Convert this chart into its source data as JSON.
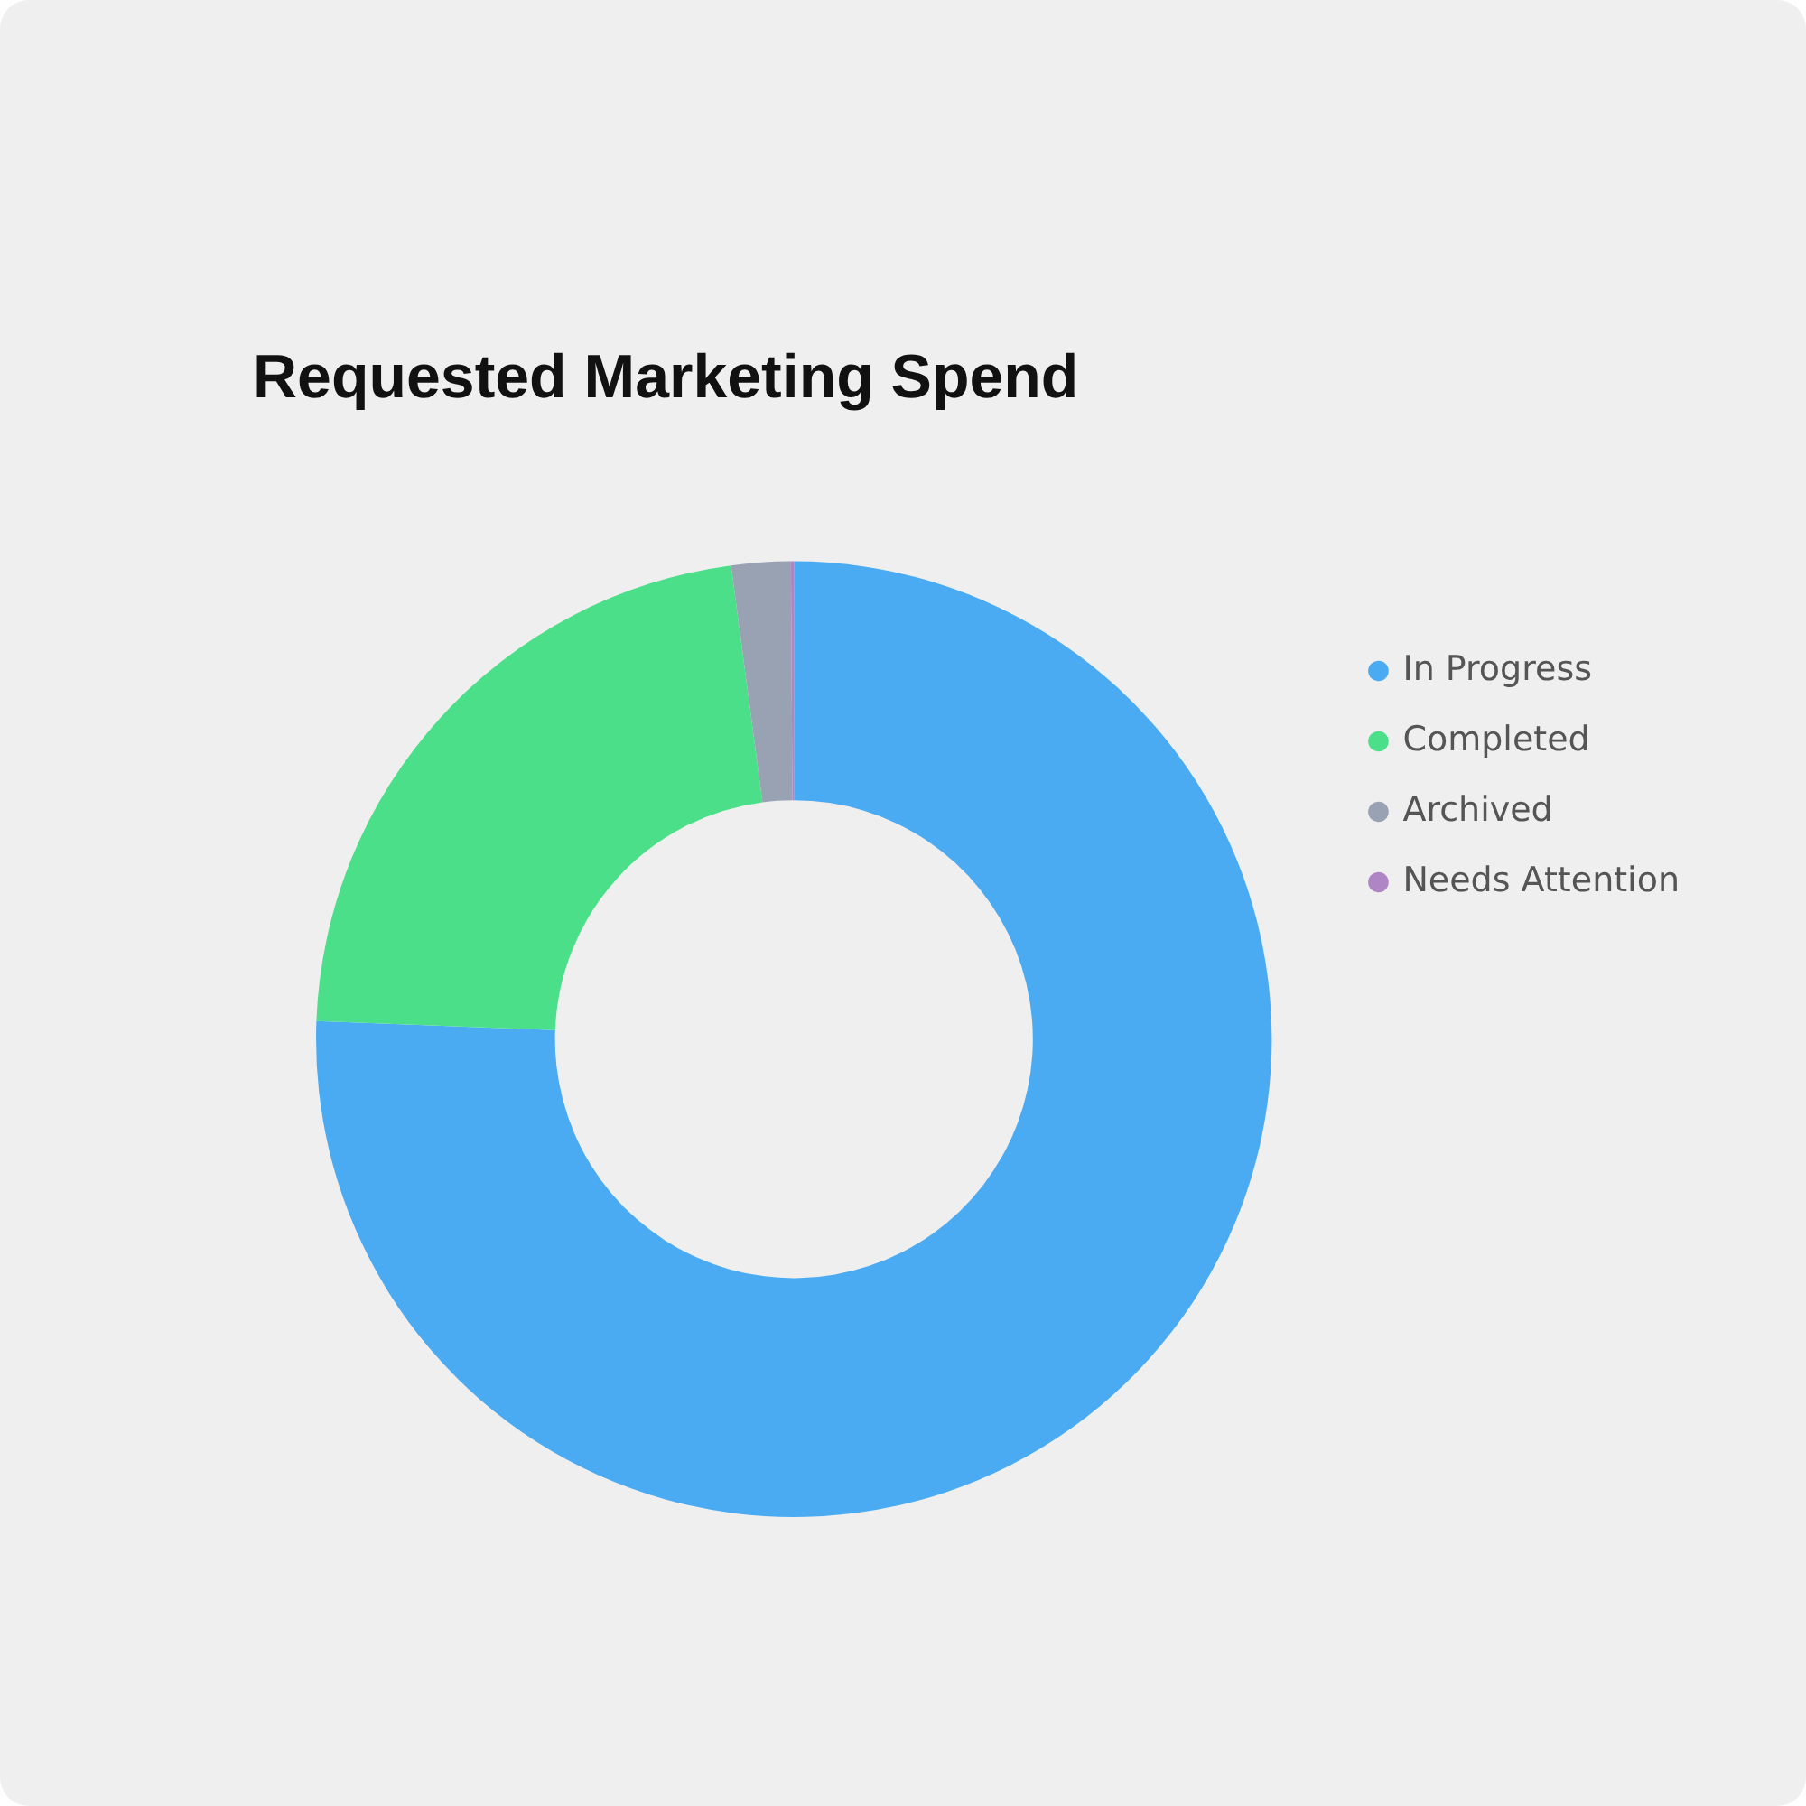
{
  "chart_data": {
    "type": "donut",
    "title": "Requested Marketing Spend",
    "categories": [
      "In Progress",
      "Completed",
      "Archived",
      "Needs Attention"
    ],
    "values": [
      75.6,
      22.3,
      2.0,
      0.1
    ],
    "colors": [
      "#4aabf3",
      "#4cdf8a",
      "#98a2b3",
      "#b085c6"
    ],
    "legend": "right"
  }
}
